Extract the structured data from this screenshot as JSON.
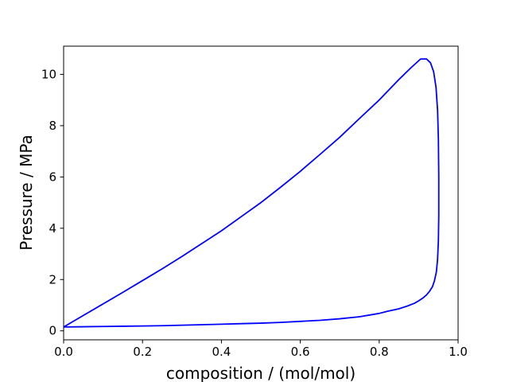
{
  "chart_data": {
    "type": "line",
    "title": "",
    "xlabel": "composition / (mol/mol)",
    "ylabel": "Pressure / MPa",
    "xlim": [
      0.0,
      1.0
    ],
    "ylim": [
      -0.35,
      11.1
    ],
    "xticks": [
      0.0,
      0.2,
      0.4,
      0.6,
      0.8,
      1.0
    ],
    "xtick_labels": [
      "0.0",
      "0.2",
      "0.4",
      "0.6",
      "0.8",
      "1.0"
    ],
    "yticks": [
      0,
      2,
      4,
      6,
      8,
      10
    ],
    "ytick_labels": [
      "0",
      "2",
      "4",
      "6",
      "8",
      "10"
    ],
    "grid": false,
    "legend": "none",
    "color": "#0000ff",
    "series": [
      {
        "x": [
          0.0,
          0.05,
          0.1,
          0.15,
          0.2,
          0.25,
          0.3,
          0.35,
          0.4,
          0.45,
          0.5,
          0.55,
          0.6,
          0.65,
          0.7,
          0.75,
          0.8,
          0.85,
          0.88,
          0.905,
          0.92,
          0.93,
          0.938,
          0.944,
          0.948,
          0.95,
          0.951,
          0.951,
          0.95,
          0.948,
          0.945,
          0.94,
          0.935,
          0.928,
          0.92,
          0.91,
          0.9,
          0.89,
          0.87,
          0.85,
          0.82,
          0.8,
          0.75,
          0.7,
          0.65,
          0.6,
          0.55,
          0.5,
          0.45,
          0.4,
          0.35,
          0.3,
          0.25,
          0.2,
          0.15,
          0.1,
          0.05,
          0.0
        ],
        "y": [
          0.15,
          0.6,
          1.05,
          1.5,
          1.96,
          2.42,
          2.9,
          3.4,
          3.9,
          4.45,
          5.0,
          5.6,
          6.22,
          6.88,
          7.55,
          8.28,
          9.0,
          9.8,
          10.25,
          10.6,
          10.6,
          10.45,
          10.1,
          9.5,
          8.6,
          7.5,
          6.0,
          4.5,
          3.5,
          2.8,
          2.3,
          1.95,
          1.72,
          1.55,
          1.4,
          1.27,
          1.17,
          1.08,
          0.96,
          0.86,
          0.76,
          0.68,
          0.55,
          0.47,
          0.41,
          0.37,
          0.33,
          0.3,
          0.28,
          0.26,
          0.24,
          0.22,
          0.2,
          0.19,
          0.18,
          0.17,
          0.16,
          0.15
        ]
      }
    ]
  }
}
